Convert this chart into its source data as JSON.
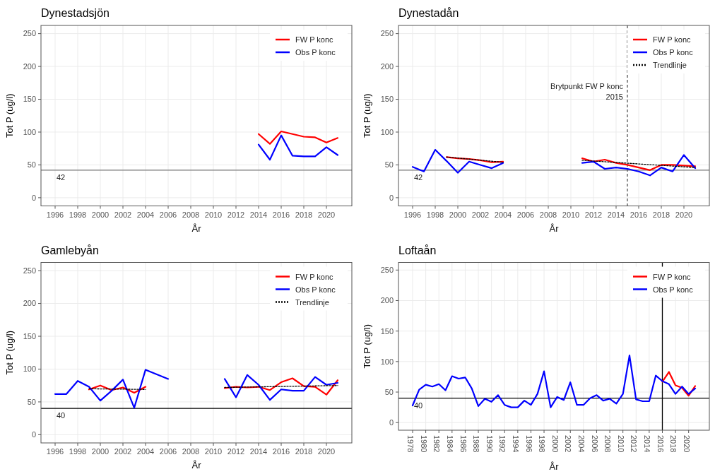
{
  "chart_data": [
    {
      "type": "line",
      "title": "Dynestadsjön",
      "xlabel": "År",
      "ylabel": "Tot P (ug/l)",
      "x": [
        2014,
        2015,
        2016,
        2017,
        2018,
        2019,
        2020,
        2021
      ],
      "series": [
        {
          "name": "FW P konc",
          "color": "#ff0000",
          "values": [
            97,
            82,
            101,
            97,
            93,
            92,
            84,
            91
          ]
        },
        {
          "name": "Obs P konc",
          "color": "#0000ff",
          "values": [
            81,
            58,
            95,
            64,
            63,
            63,
            77,
            65
          ]
        }
      ],
      "xlim": [
        1994.75,
        2022.25
      ],
      "xticks": [
        1996,
        1998,
        2000,
        2002,
        2004,
        2006,
        2008,
        2010,
        2012,
        2014,
        2016,
        2018,
        2020
      ],
      "ylim": [
        -12.5,
        262.5
      ],
      "yticks": [
        0,
        50,
        100,
        150,
        200,
        250
      ],
      "ref_lines": [
        {
          "axis": "y",
          "value": 42,
          "label": "42",
          "color": "#777777"
        }
      ],
      "grid": true,
      "legend": "top right",
      "marker": "none"
    },
    {
      "type": "line",
      "title": "Dynestadån",
      "xlabel": "År",
      "ylabel": "Tot P (ug/l)",
      "x": [
        1996,
        1997,
        1998,
        1999,
        2000,
        2001,
        2002,
        2003,
        2004,
        2005,
        2006,
        2007,
        2008,
        2009,
        2010,
        2011,
        2012,
        2013,
        2014,
        2015,
        2016,
        2017,
        2018,
        2019,
        2020,
        2021
      ],
      "series": [
        {
          "name": "FW P konc",
          "color": "#ff0000",
          "values": [
            null,
            null,
            null,
            62,
            60,
            59,
            57,
            54,
            55,
            null,
            null,
            null,
            null,
            null,
            null,
            60,
            55,
            58,
            53,
            50,
            46,
            42,
            50,
            50,
            49,
            48
          ]
        },
        {
          "name": "Obs P konc",
          "color": "#0000ff",
          "values": [
            47,
            40,
            73,
            56,
            38,
            55,
            50,
            45,
            53,
            null,
            null,
            null,
            null,
            null,
            null,
            53,
            55,
            44,
            46,
            44,
            40,
            34,
            46,
            40,
            65,
            45
          ]
        },
        {
          "name": "Trendlinje",
          "color": "#000000",
          "line_style": "dotted",
          "x": [
            1999,
            2004,
            2005,
            2011,
            2021
          ],
          "values": [
            62,
            54,
            null,
            57,
            46
          ]
        }
      ],
      "xlim": [
        1994.75,
        2022.25
      ],
      "xticks": [
        1996,
        1998,
        2000,
        2002,
        2004,
        2006,
        2008,
        2010,
        2012,
        2014,
        2016,
        2018,
        2020
      ],
      "ylim": [
        -12.5,
        262.5
      ],
      "yticks": [
        0,
        50,
        100,
        150,
        200,
        250
      ],
      "ref_lines": [
        {
          "axis": "y",
          "value": 42,
          "label": "42",
          "color": "#777777"
        },
        {
          "axis": "x",
          "value": 2015,
          "label": "Brytpunkt FW P konc 2015",
          "color": "#555555",
          "line_style": "dashed"
        }
      ],
      "grid": true,
      "legend": "top right",
      "marker": "none"
    },
    {
      "type": "line",
      "title": "Gamlebyån",
      "xlabel": "År",
      "ylabel": "Tot P (ug/l)",
      "x": [
        1996,
        1997,
        1998,
        1999,
        2000,
        2001,
        2002,
        2003,
        2004,
        2005,
        2006,
        2007,
        2008,
        2009,
        2010,
        2011,
        2012,
        2013,
        2014,
        2015,
        2016,
        2017,
        2018,
        2019,
        2020,
        2021
      ],
      "series": [
        {
          "name": "FW P konc",
          "color": "#ff0000",
          "values": [
            null,
            null,
            null,
            69,
            75,
            68,
            72,
            64,
            73,
            null,
            null,
            null,
            null,
            null,
            null,
            71,
            73,
            72,
            73,
            68,
            80,
            86,
            74,
            73,
            61,
            83
          ]
        },
        {
          "name": "Obs P konc",
          "color": "#0000ff",
          "values": [
            62,
            62,
            82,
            73,
            52,
            67,
            84,
            41,
            99,
            92,
            85,
            null,
            null,
            null,
            null,
            85,
            57,
            91,
            76,
            53,
            69,
            67,
            67,
            88,
            76,
            79
          ]
        },
        {
          "name": "Trendlinje",
          "color": "#000000",
          "line_style": "dotted",
          "x": [
            1999,
            2004,
            2005,
            2011,
            2021
          ],
          "values": [
            70,
            69,
            null,
            72,
            75
          ]
        }
      ],
      "xlim": [
        1994.75,
        2022.25
      ],
      "xticks": [
        1996,
        1998,
        2000,
        2002,
        2004,
        2006,
        2008,
        2010,
        2012,
        2014,
        2016,
        2018,
        2020
      ],
      "ylim": [
        -12.5,
        262.5
      ],
      "yticks": [
        0,
        50,
        100,
        150,
        200,
        250
      ],
      "ref_lines": [
        {
          "axis": "y",
          "value": 40,
          "label": "40",
          "color": "#000000"
        }
      ],
      "grid": true,
      "legend": "top right",
      "marker": "none"
    },
    {
      "type": "line",
      "title": "Loftaån",
      "xlabel": "År",
      "ylabel": "Tot P (ug/l)",
      "x": [
        1978,
        1979,
        1980,
        1981,
        1982,
        1983,
        1984,
        1985,
        1986,
        1987,
        1988,
        1989,
        1990,
        1991,
        1992,
        1993,
        1994,
        1995,
        1996,
        1997,
        1998,
        1999,
        2000,
        2001,
        2002,
        2003,
        2004,
        2005,
        2006,
        2007,
        2008,
        2009,
        2010,
        2011,
        2012,
        2013,
        2014,
        2015,
        2016,
        2017,
        2018,
        2019,
        2020,
        2021
      ],
      "series": [
        {
          "name": "FW P konc",
          "color": "#ff0000",
          "values": [
            null,
            null,
            null,
            null,
            null,
            null,
            null,
            null,
            null,
            null,
            null,
            null,
            null,
            null,
            null,
            null,
            null,
            null,
            null,
            null,
            null,
            null,
            null,
            null,
            null,
            null,
            null,
            null,
            null,
            null,
            null,
            null,
            null,
            null,
            null,
            null,
            null,
            null,
            67,
            83,
            61,
            57,
            44,
            60
          ]
        },
        {
          "name": "Obs P konc",
          "color": "#0000ff",
          "values": [
            28,
            54,
            62,
            59,
            63,
            53,
            76,
            72,
            74,
            56,
            27,
            39,
            34,
            45,
            29,
            25,
            25,
            36,
            29,
            47,
            84,
            25,
            42,
            37,
            66,
            29,
            29,
            40,
            45,
            36,
            39,
            31,
            47,
            110,
            38,
            35,
            35,
            77,
            68,
            63,
            47,
            59,
            47,
            56
          ]
        }
      ],
      "xlim": [
        1975.85,
        2023.15
      ],
      "xticks": [
        1978,
        1980,
        1982,
        1984,
        1986,
        1988,
        1990,
        1992,
        1994,
        1996,
        1998,
        2000,
        2002,
        2004,
        2006,
        2008,
        2010,
        2012,
        2014,
        2016,
        2018,
        2020
      ],
      "ylim": [
        -12.5,
        262.5
      ],
      "yticks": [
        0,
        50,
        100,
        150,
        200,
        250
      ],
      "ref_lines": [
        {
          "axis": "y",
          "value": 40,
          "label": "40",
          "color": "#000000"
        },
        {
          "axis": "x",
          "value": 2016,
          "color": "#000000",
          "line_style": "solid"
        }
      ],
      "grid": true,
      "legend": "top right",
      "marker": "none"
    }
  ]
}
